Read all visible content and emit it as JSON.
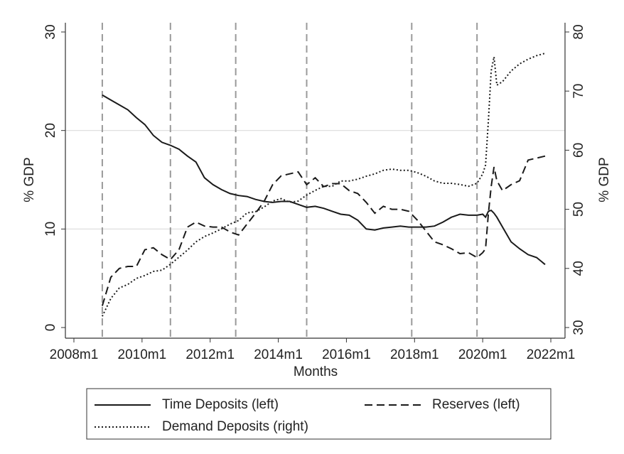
{
  "chart_data": {
    "type": "line",
    "x_label": "Months",
    "y_label": "% GDP",
    "y2_label": "% GDP",
    "xlim": [
      573,
      749
    ],
    "xticks": [
      {
        "value": 576,
        "label": "2008m1"
      },
      {
        "value": 600,
        "label": "2010m1"
      },
      {
        "value": 624,
        "label": "2012m1"
      },
      {
        "value": 648,
        "label": "2014m1"
      },
      {
        "value": 672,
        "label": "2016m1"
      },
      {
        "value": 696,
        "label": "2018m1"
      },
      {
        "value": 720,
        "label": "2020m1"
      },
      {
        "value": 744,
        "label": "2022m1"
      }
    ],
    "ylim": [
      0,
      30
    ],
    "yticks": [
      0,
      10,
      20,
      30
    ],
    "y2lim": [
      30,
      80
    ],
    "y2ticks": [
      30,
      40,
      50,
      60,
      70,
      80
    ],
    "grid": true,
    "vlines": [
      "2008m11",
      "2010m11",
      "2012m10",
      "2014m11",
      "2017m12",
      "2019m11"
    ],
    "x": [
      "2008m11",
      "2009m2",
      "2009m5",
      "2009m8",
      "2009m11",
      "2010m2",
      "2010m5",
      "2010m8",
      "2010m11",
      "2011m2",
      "2011m5",
      "2011m8",
      "2011m11",
      "2012m2",
      "2012m5",
      "2012m8",
      "2012m11",
      "2013m2",
      "2013m5",
      "2013m8",
      "2013m11",
      "2014m2",
      "2014m5",
      "2014m8",
      "2014m11",
      "2015m2",
      "2015m5",
      "2015m8",
      "2015m11",
      "2016m2",
      "2016m5",
      "2016m8",
      "2016m11",
      "2017m2",
      "2017m5",
      "2017m8",
      "2017m11",
      "2018m2",
      "2018m5",
      "2018m8",
      "2018m11",
      "2019m2",
      "2019m5",
      "2019m8",
      "2019m11",
      "2020m1",
      "2020m2",
      "2020m3",
      "2020m4",
      "2020m5",
      "2020m6",
      "2020m8",
      "2020m11",
      "2021m2",
      "2021m5",
      "2021m8",
      "2021m11"
    ],
    "series": [
      {
        "name": "Time Deposits (left)",
        "color": "#1a1a1a",
        "style": "solid",
        "axis": "y",
        "values": [
          23.6,
          23.1,
          22.6,
          22.1,
          21.3,
          20.6,
          19.5,
          18.8,
          18.5,
          18.1,
          17.4,
          16.8,
          15.2,
          14.5,
          14.0,
          13.6,
          13.4,
          13.3,
          13.0,
          12.8,
          12.7,
          12.8,
          12.8,
          12.5,
          12.2,
          12.3,
          12.1,
          11.8,
          11.5,
          11.4,
          10.9,
          10.0,
          9.9,
          10.1,
          10.2,
          10.3,
          10.2,
          10.2,
          10.2,
          10.3,
          10.7,
          11.2,
          11.5,
          11.4,
          11.4,
          11.5,
          11.2,
          11.8,
          11.9,
          11.6,
          11.2,
          10.2,
          8.7,
          8.0,
          7.4,
          7.1,
          6.4
        ]
      },
      {
        "name": "Reserves (left)",
        "color": "#1a1a1a",
        "style": "dashed",
        "axis": "y",
        "values": [
          2.2,
          5.1,
          6.0,
          6.2,
          6.2,
          7.9,
          8.1,
          7.4,
          6.9,
          7.9,
          10.2,
          10.7,
          10.3,
          10.2,
          10.2,
          9.7,
          9.4,
          10.5,
          11.6,
          12.8,
          14.5,
          15.4,
          15.6,
          15.8,
          14.5,
          15.2,
          14.3,
          14.6,
          14.6,
          13.9,
          13.6,
          12.7,
          11.6,
          12.3,
          12.0,
          12.0,
          11.8,
          10.9,
          9.8,
          8.7,
          8.4,
          8.0,
          7.5,
          7.6,
          7.1,
          7.6,
          8.0,
          11.6,
          14.3,
          16.3,
          14.9,
          13.9,
          14.5,
          14.9,
          17.0,
          17.2,
          17.4
        ]
      },
      {
        "name": "Demand Deposits (right)",
        "color": "#1a1a1a",
        "style": "dotted",
        "axis": "y2",
        "values": [
          31.9,
          34.9,
          36.7,
          37.3,
          38.3,
          38.8,
          39.5,
          39.7,
          40.7,
          41.9,
          43.1,
          44.5,
          45.4,
          46.0,
          46.7,
          47.5,
          48.1,
          49.4,
          49.6,
          50.4,
          51.4,
          51.8,
          51.2,
          51.4,
          52.4,
          53.2,
          53.9,
          53.9,
          54.8,
          54.8,
          55.1,
          55.6,
          56.0,
          56.6,
          56.8,
          56.6,
          56.6,
          56.2,
          55.6,
          54.8,
          54.4,
          54.4,
          54.2,
          53.9,
          54.4,
          56.0,
          57.5,
          65.0,
          73.4,
          75.8,
          71.0,
          71.6,
          73.4,
          74.6,
          75.4,
          76.0,
          76.4
        ]
      }
    ]
  }
}
